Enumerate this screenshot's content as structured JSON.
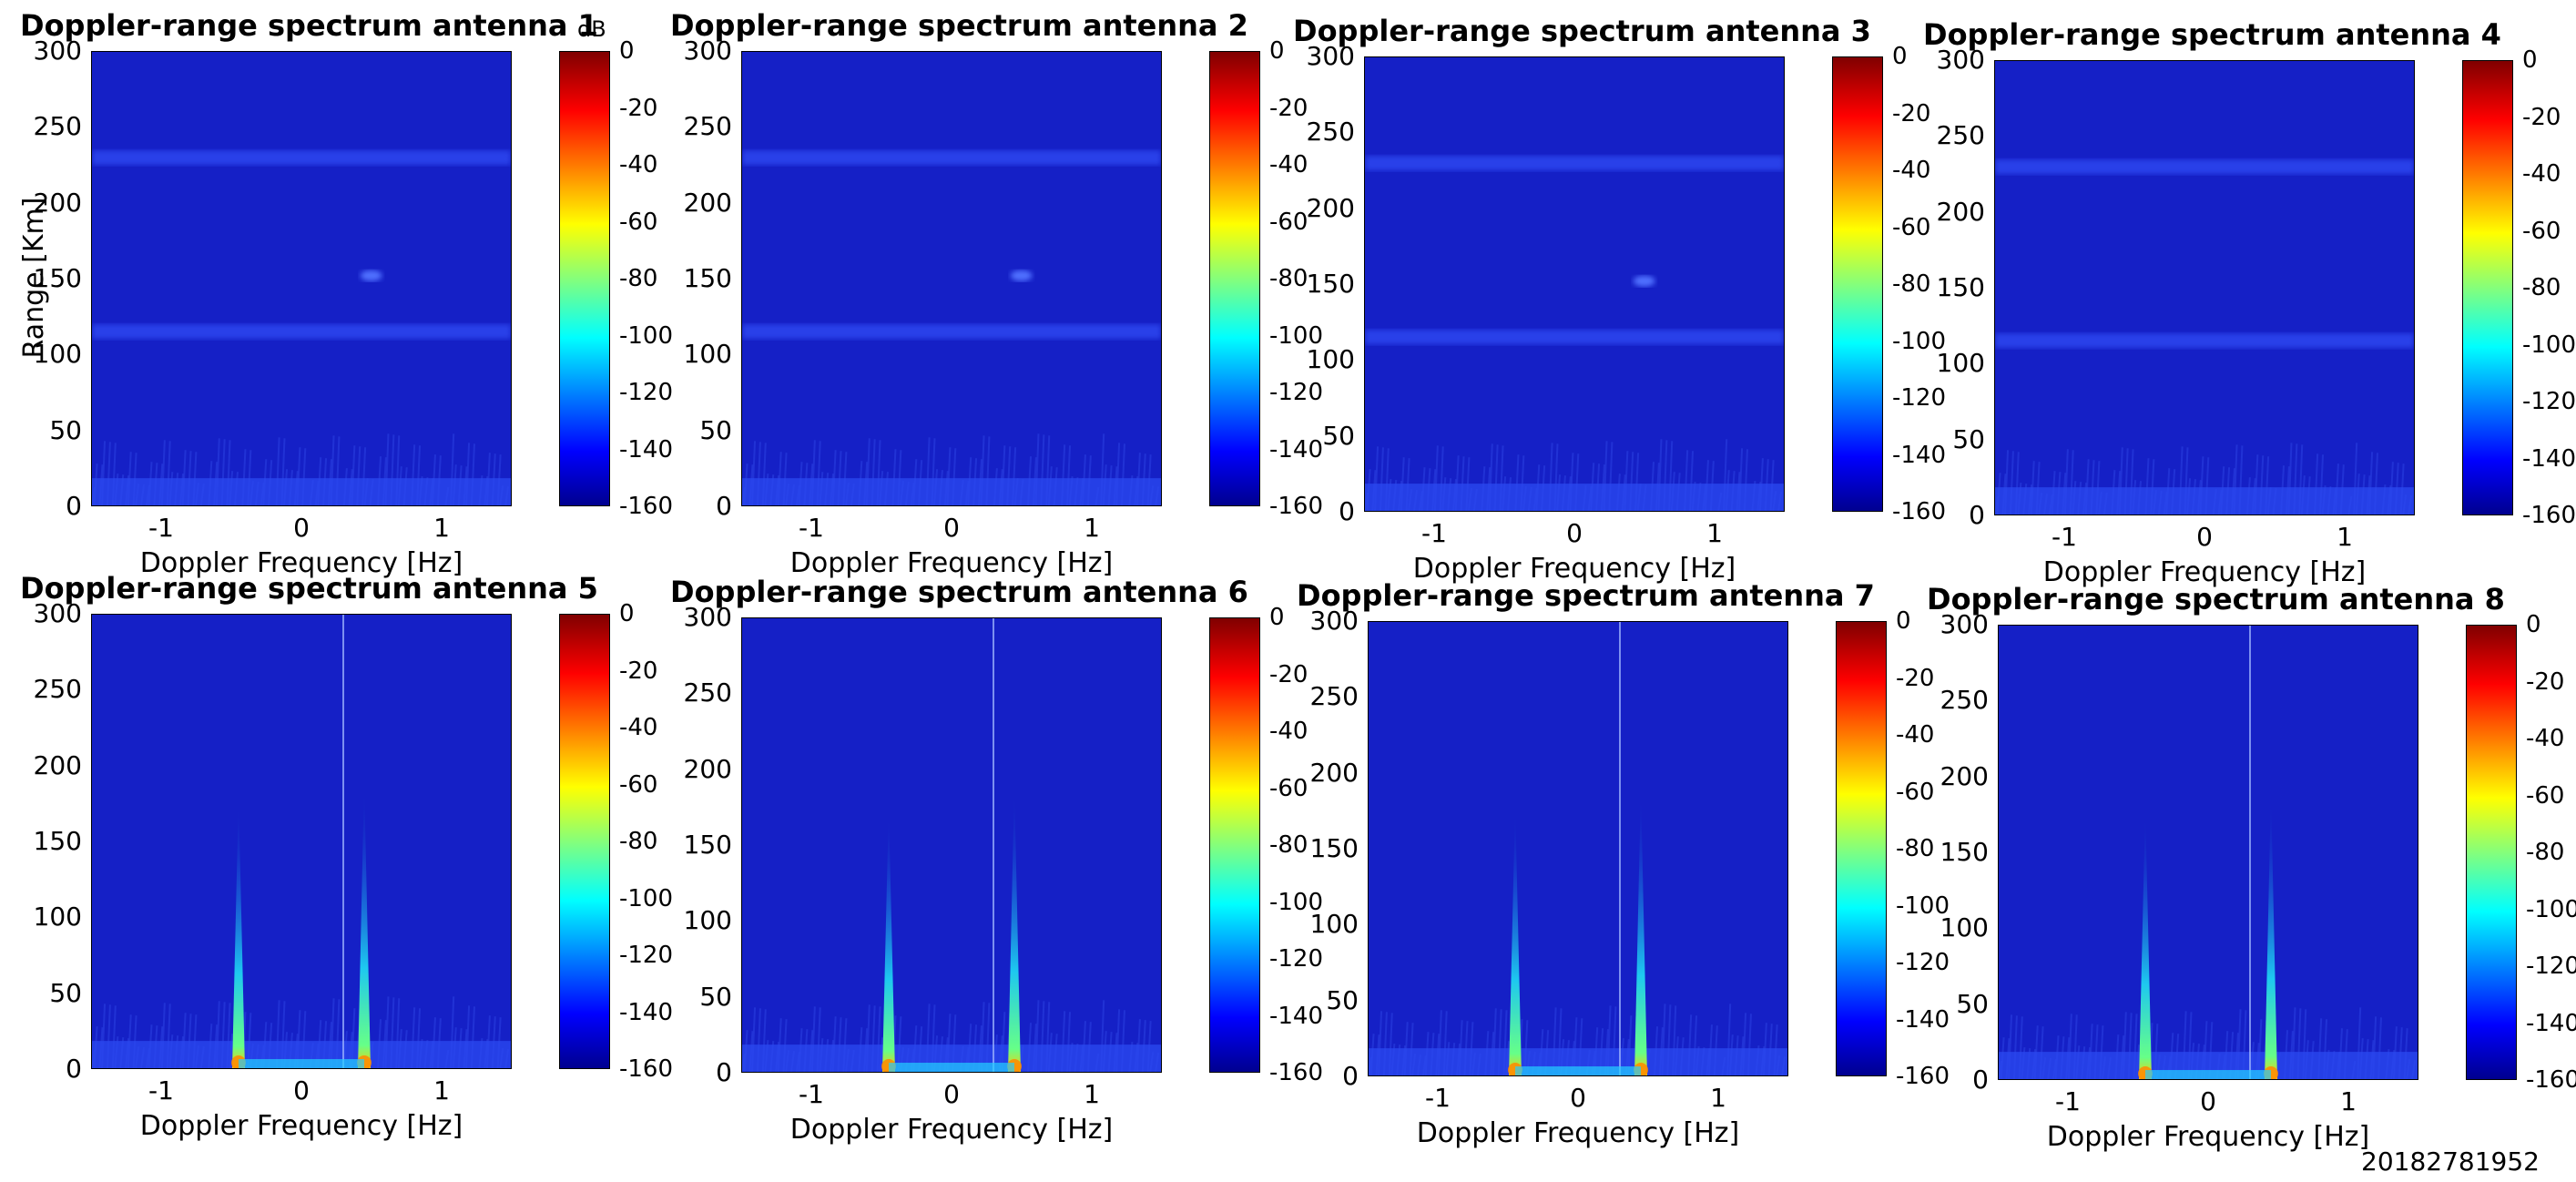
{
  "figure": {
    "footnote": "20182781952",
    "colorbar_unit": "dB"
  },
  "chart_data": [
    {
      "type": "heatmap",
      "title": "Doppler-range spectrum antenna 1",
      "xlabel": "Doppler Frequency [Hz]",
      "ylabel": "Range [Km]",
      "xlim": [
        -1.5,
        1.5
      ],
      "ylim": [
        0,
        300
      ],
      "xticks": [
        "-1",
        "0",
        "1"
      ],
      "yticks": [
        "0",
        "50",
        "100",
        "150",
        "200",
        "250",
        "300"
      ],
      "clim": [
        -160,
        0
      ],
      "cticks": [
        "0",
        "-20",
        "-40",
        "-60",
        "-80",
        "-100",
        "-120",
        "-140",
        "-160"
      ],
      "colormap": "jet",
      "features": [
        {
          "range_km": 115,
          "kind": "band"
        },
        {
          "range_km": 230,
          "kind": "band"
        },
        {
          "range_km": 152,
          "doppler_hz": 0.5,
          "kind": "spot"
        }
      ]
    },
    {
      "type": "heatmap",
      "title": "Doppler-range spectrum antenna 2",
      "xlabel": "Doppler Frequency [Hz]",
      "ylabel": "",
      "xlim": [
        -1.5,
        1.5
      ],
      "ylim": [
        0,
        300
      ],
      "xticks": [
        "-1",
        "0",
        "1"
      ],
      "yticks": [
        "0",
        "50",
        "100",
        "150",
        "200",
        "250",
        "300"
      ],
      "clim": [
        -160,
        0
      ],
      "cticks": [
        "0",
        "-20",
        "-40",
        "-60",
        "-80",
        "-100",
        "-120",
        "-140",
        "-160"
      ],
      "colormap": "jet",
      "features": [
        {
          "range_km": 115,
          "kind": "band"
        },
        {
          "range_km": 230,
          "kind": "band"
        },
        {
          "range_km": 152,
          "doppler_hz": 0.5,
          "kind": "spot"
        }
      ]
    },
    {
      "type": "heatmap",
      "title": "Doppler-range spectrum antenna 3",
      "xlabel": "Doppler Frequency [Hz]",
      "ylabel": "",
      "xlim": [
        -1.5,
        1.5
      ],
      "ylim": [
        0,
        300
      ],
      "xticks": [
        "-1",
        "0",
        "1"
      ],
      "yticks": [
        "0",
        "50",
        "100",
        "150",
        "200",
        "250",
        "300"
      ],
      "clim": [
        -160,
        0
      ],
      "cticks": [
        "0",
        "-20",
        "-40",
        "-60",
        "-80",
        "-100",
        "-120",
        "-140",
        "-160"
      ],
      "colormap": "jet",
      "features": [
        {
          "range_km": 115,
          "kind": "band"
        },
        {
          "range_km": 230,
          "kind": "band"
        },
        {
          "range_km": 152,
          "doppler_hz": 0.5,
          "kind": "spot"
        }
      ]
    },
    {
      "type": "heatmap",
      "title": "Doppler-range spectrum antenna 4",
      "xlabel": "Doppler Frequency [Hz]",
      "ylabel": "",
      "xlim": [
        -1.5,
        1.5
      ],
      "ylim": [
        0,
        300
      ],
      "xticks": [
        "-1",
        "0",
        "1"
      ],
      "yticks": [
        "0",
        "50",
        "100",
        "150",
        "200",
        "250",
        "300"
      ],
      "clim": [
        -160,
        0
      ],
      "cticks": [
        "0",
        "-20",
        "-40",
        "-60",
        "-80",
        "-100",
        "-120",
        "-140",
        "-160"
      ],
      "colormap": "jet",
      "features": [
        {
          "range_km": 115,
          "kind": "band"
        },
        {
          "range_km": 230,
          "kind": "band"
        }
      ]
    },
    {
      "type": "heatmap",
      "title": "Doppler-range spectrum antenna 5",
      "xlabel": "Doppler Frequency [Hz]",
      "ylabel": "",
      "xlim": [
        -1.5,
        1.5
      ],
      "ylim": [
        0,
        300
      ],
      "xticks": [
        "-1",
        "0",
        "1"
      ],
      "yticks": [
        "0",
        "50",
        "100",
        "150",
        "200",
        "250",
        "300"
      ],
      "clim": [
        -160,
        0
      ],
      "cticks": [
        "0",
        "-20",
        "-40",
        "-60",
        "-80",
        "-100",
        "-120",
        "-140",
        "-160"
      ],
      "colormap": "jet",
      "features": [
        {
          "doppler_hz": -0.45,
          "max_range_km": 180,
          "kind": "bragg"
        },
        {
          "doppler_hz": 0.45,
          "max_range_km": 190,
          "kind": "bragg"
        },
        {
          "doppler_hz": 0.3,
          "kind": "line"
        }
      ]
    },
    {
      "type": "heatmap",
      "title": "Doppler-range spectrum antenna 6",
      "xlabel": "Doppler Frequency [Hz]",
      "ylabel": "",
      "xlim": [
        -1.5,
        1.5
      ],
      "ylim": [
        0,
        300
      ],
      "xticks": [
        "-1",
        "0",
        "1"
      ],
      "yticks": [
        "0",
        "50",
        "100",
        "150",
        "200",
        "250",
        "300"
      ],
      "clim": [
        -160,
        0
      ],
      "cticks": [
        "0",
        "-20",
        "-40",
        "-60",
        "-80",
        "-100",
        "-120",
        "-140",
        "-160"
      ],
      "colormap": "jet",
      "features": [
        {
          "doppler_hz": -0.45,
          "max_range_km": 175,
          "kind": "bragg"
        },
        {
          "doppler_hz": 0.45,
          "max_range_km": 190,
          "kind": "bragg"
        },
        {
          "doppler_hz": 0.3,
          "kind": "line"
        }
      ]
    },
    {
      "type": "heatmap",
      "title": "Doppler-range spectrum antenna 7",
      "xlabel": "Doppler Frequency [Hz]",
      "ylabel": "",
      "xlim": [
        -1.5,
        1.5
      ],
      "ylim": [
        0,
        300
      ],
      "xticks": [
        "-1",
        "0",
        "1"
      ],
      "yticks": [
        "0",
        "50",
        "100",
        "150",
        "200",
        "250",
        "300"
      ],
      "clim": [
        -160,
        0
      ],
      "cticks": [
        "0",
        "-20",
        "-40",
        "-60",
        "-80",
        "-100",
        "-120",
        "-140",
        "-160"
      ],
      "colormap": "jet",
      "features": [
        {
          "doppler_hz": -0.45,
          "max_range_km": 180,
          "kind": "bragg"
        },
        {
          "doppler_hz": 0.45,
          "max_range_km": 190,
          "kind": "bragg"
        },
        {
          "doppler_hz": 0.3,
          "kind": "line"
        }
      ]
    },
    {
      "type": "heatmap",
      "title": "Doppler-range spectrum antenna 8",
      "xlabel": "Doppler Frequency [Hz]",
      "ylabel": "",
      "xlim": [
        -1.5,
        1.5
      ],
      "ylim": [
        0,
        300
      ],
      "xticks": [
        "-1",
        "0",
        "1"
      ],
      "yticks": [
        "0",
        "50",
        "100",
        "150",
        "200",
        "250",
        "300"
      ],
      "clim": [
        -160,
        0
      ],
      "cticks": [
        "0",
        "-20",
        "-40",
        "-60",
        "-80",
        "-100",
        "-120",
        "-140",
        "-160"
      ],
      "colormap": "jet",
      "features": [
        {
          "doppler_hz": -0.45,
          "max_range_km": 180,
          "kind": "bragg"
        },
        {
          "doppler_hz": 0.45,
          "max_range_km": 190,
          "kind": "bragg"
        },
        {
          "doppler_hz": 0.3,
          "kind": "line"
        }
      ]
    }
  ]
}
